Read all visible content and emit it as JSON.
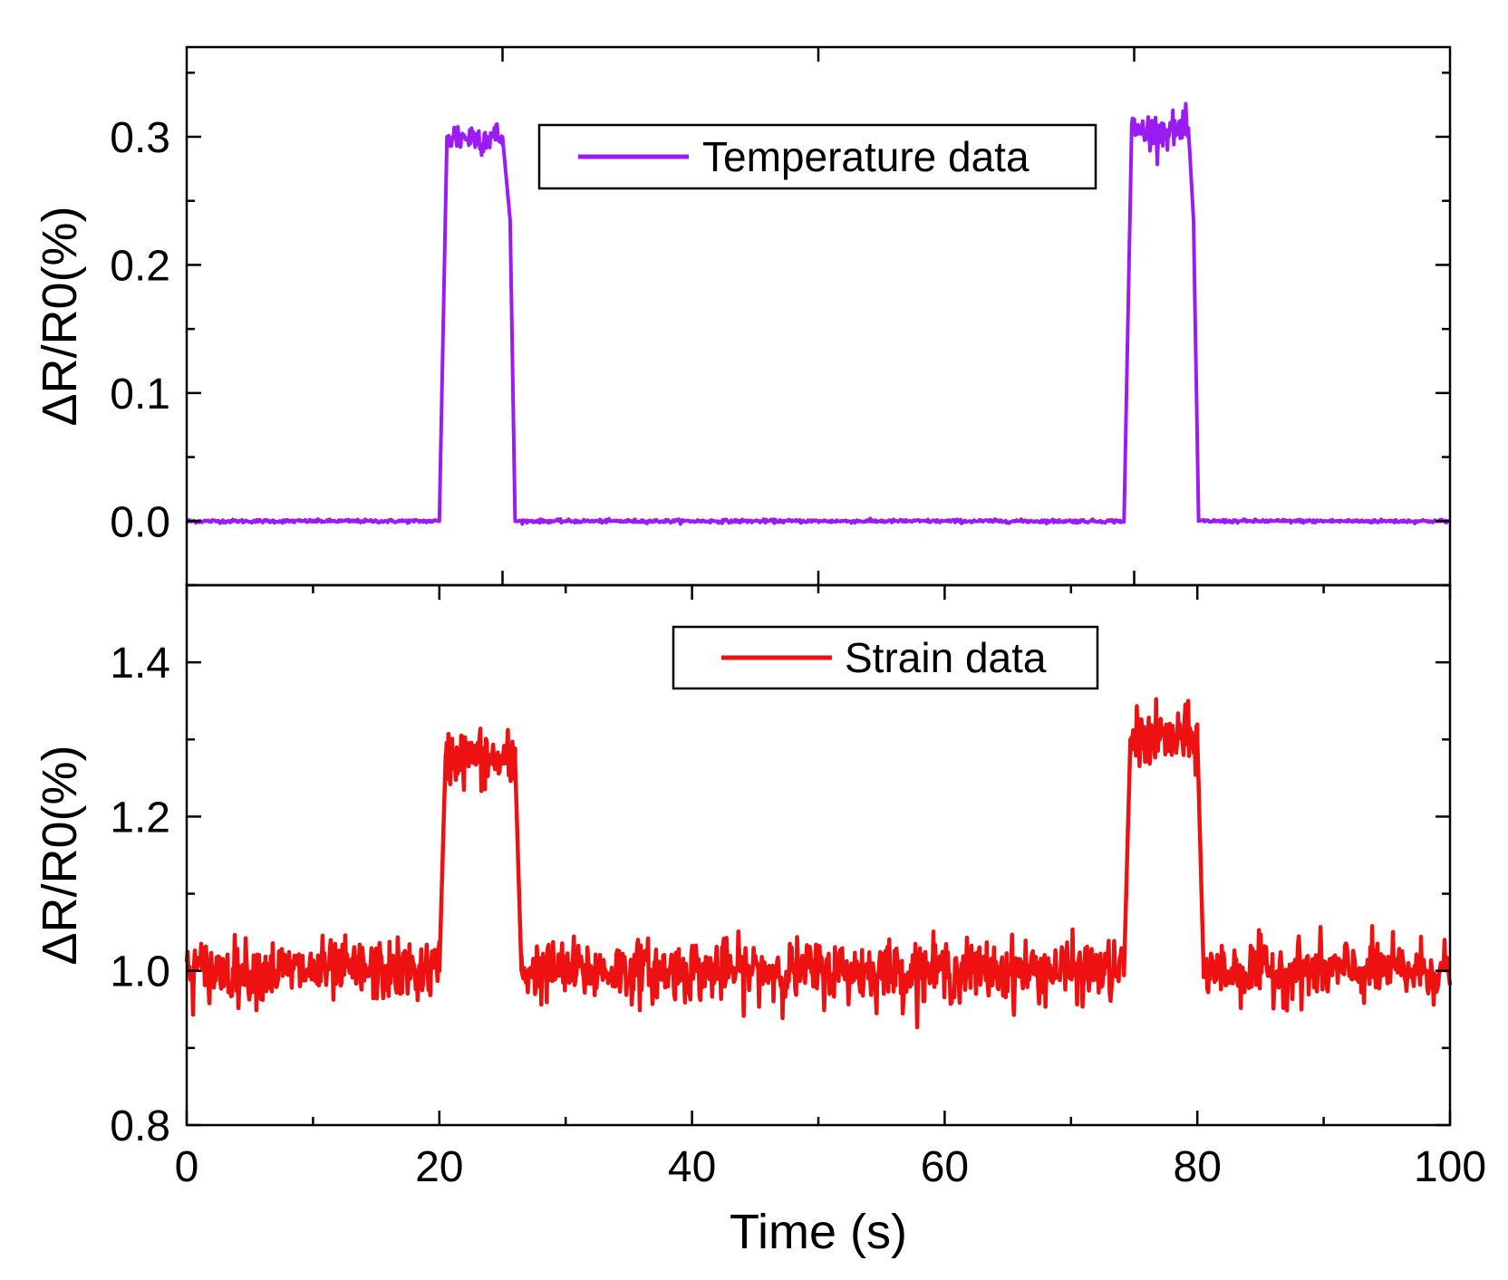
{
  "chart_data": [
    {
      "id": "top",
      "type": "line",
      "ylabel": "ΔR/R0(%)",
      "xlabel": "",
      "xlim": [
        0,
        100
      ],
      "ylim": [
        -0.05,
        0.37
      ],
      "yticks": [
        0.0,
        0.1,
        0.2,
        0.3
      ],
      "ytick_labels": [
        "0.0",
        "0.1",
        "0.2",
        "0.3"
      ],
      "minor_yticks": [
        -0.05,
        0.05,
        0.15,
        0.25,
        0.35
      ],
      "xticks": [
        25,
        50,
        75
      ],
      "show_xtick_labels": false,
      "grid": false,
      "legend": {
        "position": "top-center",
        "entries": [
          "Temperature data"
        ]
      },
      "series": [
        {
          "name": "Temperature data",
          "color": "#9b1bf5",
          "baseline": 0.0,
          "noise": 0.001,
          "plateau_noise": 0.012,
          "segments": [
            {
              "x": [
                0,
                20.0
              ],
              "y": [
                0.0,
                0.0
              ]
            },
            {
              "x": [
                20.0,
                20.6
              ],
              "y": [
                0.0,
                0.3
              ]
            },
            {
              "x": [
                20.6,
                25.0
              ],
              "y": [
                0.3,
                0.3
              ]
            },
            {
              "x": [
                25.0,
                25.6
              ],
              "y": [
                0.3,
                0.235
              ]
            },
            {
              "x": [
                25.6,
                26.0
              ],
              "y": [
                0.235,
                0.0
              ]
            },
            {
              "x": [
                26.0,
                74.2
              ],
              "y": [
                0.0,
                0.0
              ]
            },
            {
              "x": [
                74.2,
                74.8
              ],
              "y": [
                0.0,
                0.305
              ]
            },
            {
              "x": [
                74.8,
                79.3
              ],
              "y": [
                0.305,
                0.305
              ]
            },
            {
              "x": [
                79.3,
                79.7
              ],
              "y": [
                0.305,
                0.235
              ]
            },
            {
              "x": [
                79.7,
                80.1
              ],
              "y": [
                0.235,
                0.0
              ]
            },
            {
              "x": [
                80.1,
                100
              ],
              "y": [
                0.0,
                0.0
              ]
            }
          ]
        }
      ]
    },
    {
      "id": "bottom",
      "type": "line",
      "ylabel": "ΔR/R0(%)",
      "xlabel": "Time (s)",
      "xlim": [
        0,
        100
      ],
      "ylim": [
        0.8,
        1.5
      ],
      "yticks": [
        0.8,
        1.0,
        1.2,
        1.4
      ],
      "ytick_labels": [
        "0.8",
        "1.0",
        "1.2",
        "1.4"
      ],
      "minor_yticks": [
        0.9,
        1.1,
        1.3,
        1.5
      ],
      "xticks": [
        0,
        20,
        40,
        60,
        80,
        100
      ],
      "xtick_labels": [
        "0",
        "20",
        "40",
        "60",
        "80",
        "100"
      ],
      "minor_xticks": [
        10,
        30,
        50,
        70,
        90
      ],
      "grid": false,
      "legend": {
        "position": "top-center",
        "entries": [
          "Strain data"
        ]
      },
      "series": [
        {
          "name": "Strain data",
          "color": "#ee1111",
          "baseline": 1.0,
          "noise": 0.03,
          "plateau_noise": 0.035,
          "segments": [
            {
              "x": [
                0,
                20.0
              ],
              "y": [
                1.0,
                1.0
              ]
            },
            {
              "x": [
                20.0,
                20.5
              ],
              "y": [
                1.0,
                1.28
              ]
            },
            {
              "x": [
                20.5,
                26.0
              ],
              "y": [
                1.28,
                1.27
              ]
            },
            {
              "x": [
                26.0,
                26.5
              ],
              "y": [
                1.27,
                1.0
              ]
            },
            {
              "x": [
                26.5,
                74.2
              ],
              "y": [
                1.0,
                1.0
              ]
            },
            {
              "x": [
                74.2,
                74.7
              ],
              "y": [
                1.0,
                1.3
              ]
            },
            {
              "x": [
                74.7,
                80.0
              ],
              "y": [
                1.3,
                1.3
              ]
            },
            {
              "x": [
                80.0,
                80.5
              ],
              "y": [
                1.3,
                1.0
              ]
            },
            {
              "x": [
                80.5,
                100
              ],
              "y": [
                1.0,
                1.0
              ]
            }
          ]
        }
      ]
    }
  ]
}
